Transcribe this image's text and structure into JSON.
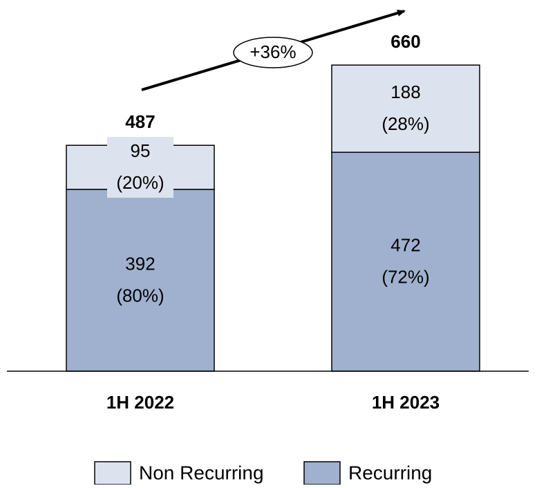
{
  "chart_data": {
    "type": "stacked_bar",
    "categories": [
      "1H 2022",
      "1H 2023"
    ],
    "series": [
      {
        "name": "Recurring",
        "color": "#9fb1ce",
        "values": [
          392,
          472
        ],
        "share_labels": [
          "(80%)",
          "(72%)"
        ]
      },
      {
        "name": "Non Recurring",
        "color": "#dde3ee",
        "values": [
          95,
          188
        ],
        "share_labels": [
          "(20%)",
          "(28%)"
        ]
      }
    ],
    "totals": [
      487,
      660
    ],
    "annotation": "+36%"
  }
}
